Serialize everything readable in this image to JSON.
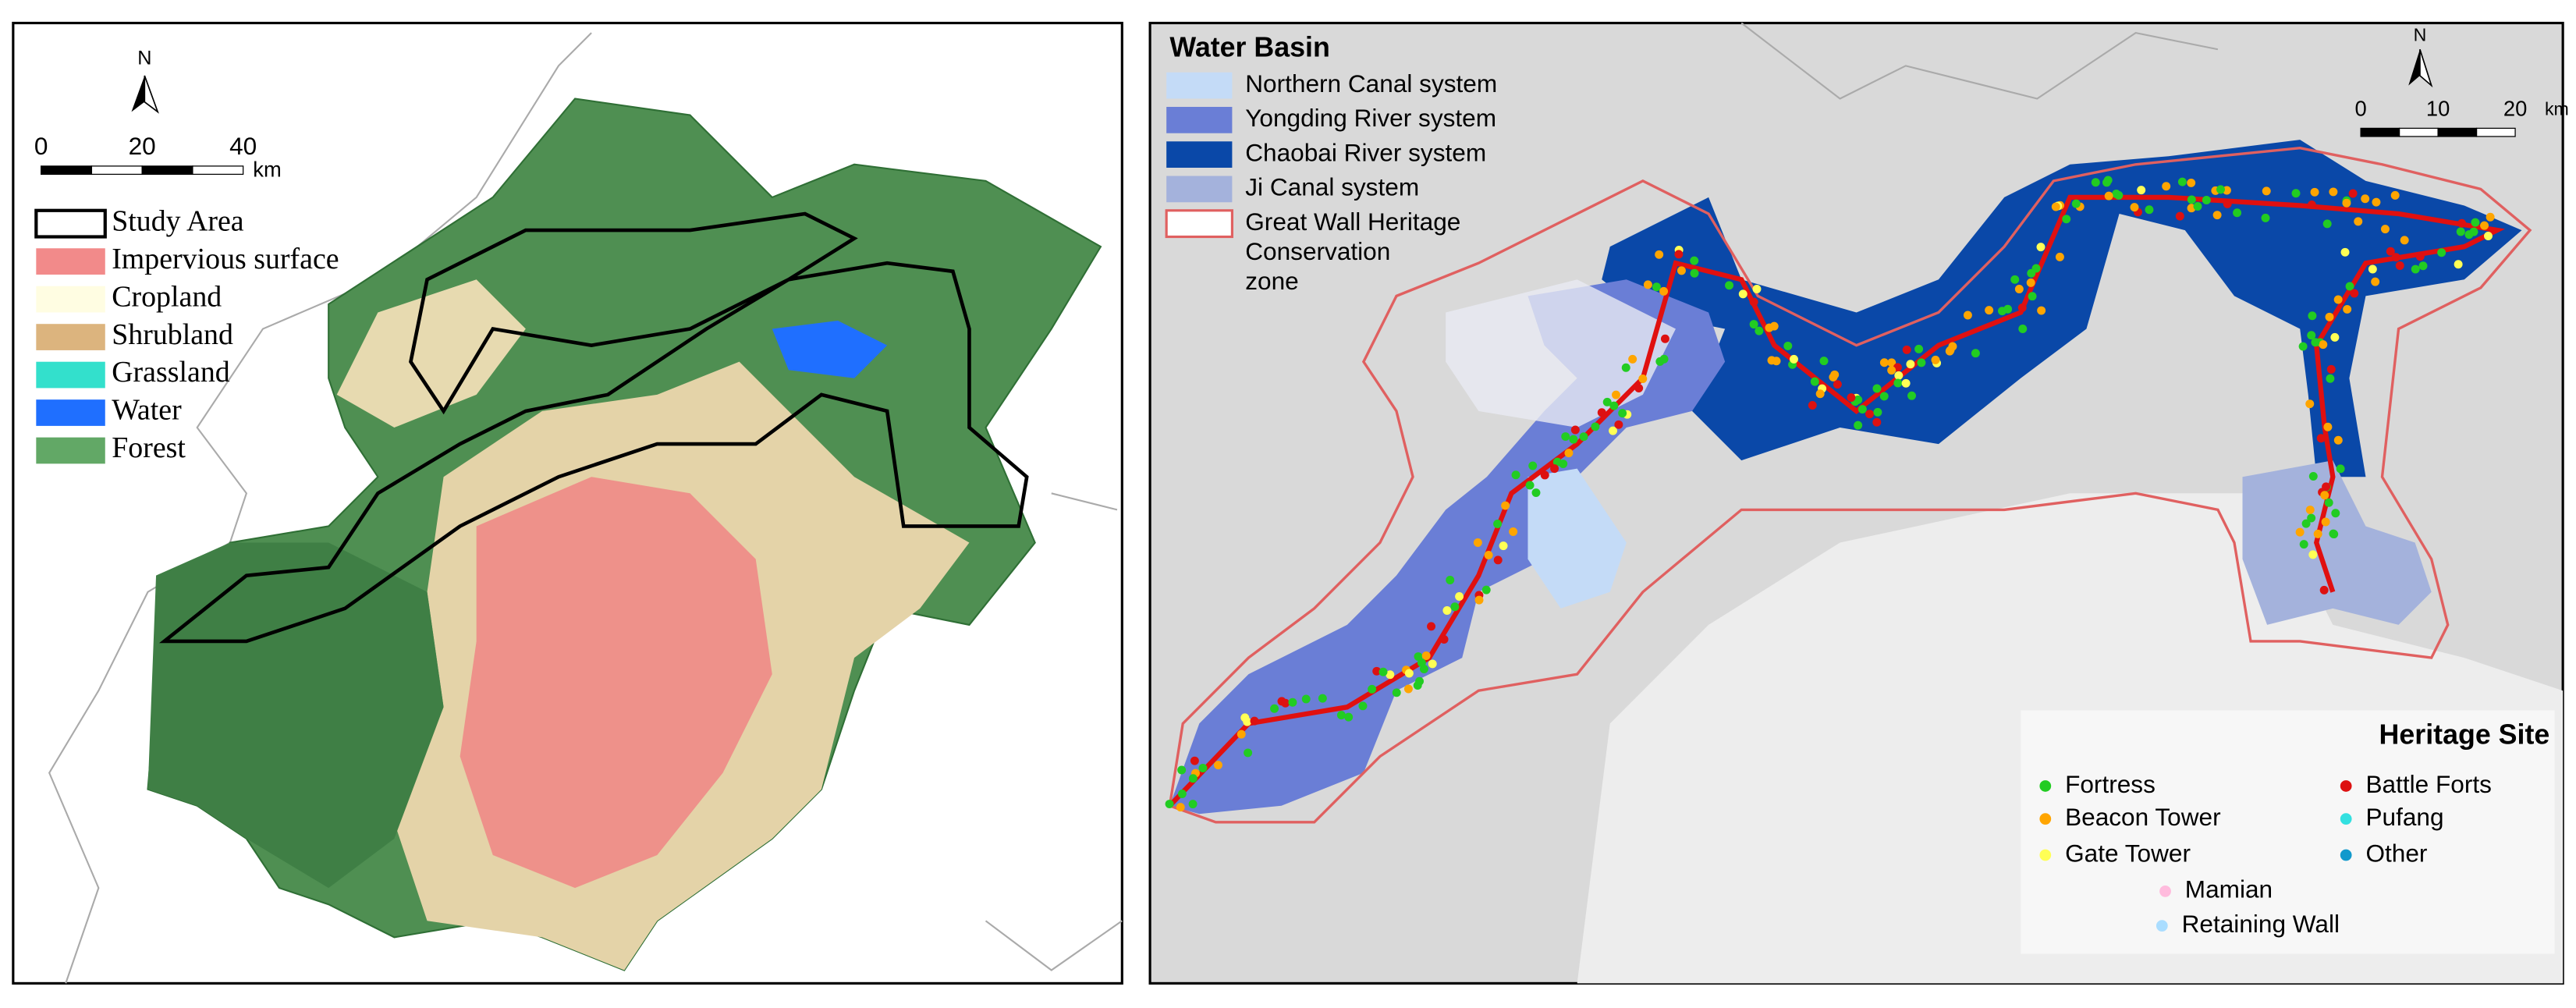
{
  "left_map": {
    "north_label": "N",
    "scale_bar": {
      "ticks": [
        0,
        20,
        40
      ],
      "unit": "km"
    },
    "legend": [
      {
        "label": "Study Area",
        "color": "#ffffff",
        "outline": "#000000"
      },
      {
        "label": "Impervious surface",
        "color": "#f28a8a"
      },
      {
        "label": "Cropland",
        "color": "#fffde2"
      },
      {
        "label": "Shrubland",
        "color": "#dcb47e"
      },
      {
        "label": "Grassland",
        "color": "#33e0cc"
      },
      {
        "label": "Water",
        "color": "#1f6fff"
      },
      {
        "label": "Forest",
        "color": "#62a866"
      }
    ]
  },
  "right_map": {
    "north_label": "N",
    "scale_bar": {
      "ticks": [
        0,
        10,
        20
      ],
      "unit": "km"
    },
    "water_basin": {
      "title": "Water Basin",
      "items": [
        {
          "label": "Northern Canal system",
          "color": "#c4dbf7"
        },
        {
          "label": "Yongding River system",
          "color": "#6a7ed6"
        },
        {
          "label": "Chaobai River system",
          "color": "#0a48a8"
        },
        {
          "label": "Ji Canal system",
          "color": "#a4b2dc"
        },
        {
          "lines": [
            "Great Wall Heritage",
            "Conservation",
            "zone"
          ],
          "color": "#ffffff",
          "outline": "#e06060"
        }
      ]
    },
    "heritage_site": {
      "title": "Heritage Site",
      "items": [
        {
          "label": "Fortress",
          "color": "#22cc22"
        },
        {
          "label": "Battle Forts",
          "color": "#dd1111"
        },
        {
          "label": "Beacon Tower",
          "color": "#ffa500"
        },
        {
          "label": "Pufang",
          "color": "#33e0e0"
        },
        {
          "label": "Gate Tower",
          "color": "#ffff55"
        },
        {
          "label": "Other",
          "color": "#1199cc"
        },
        {
          "label": "Mamian",
          "color": "#ffbbdd"
        },
        {
          "label": "Retaining Wall",
          "color": "#aaddff"
        }
      ]
    }
  }
}
